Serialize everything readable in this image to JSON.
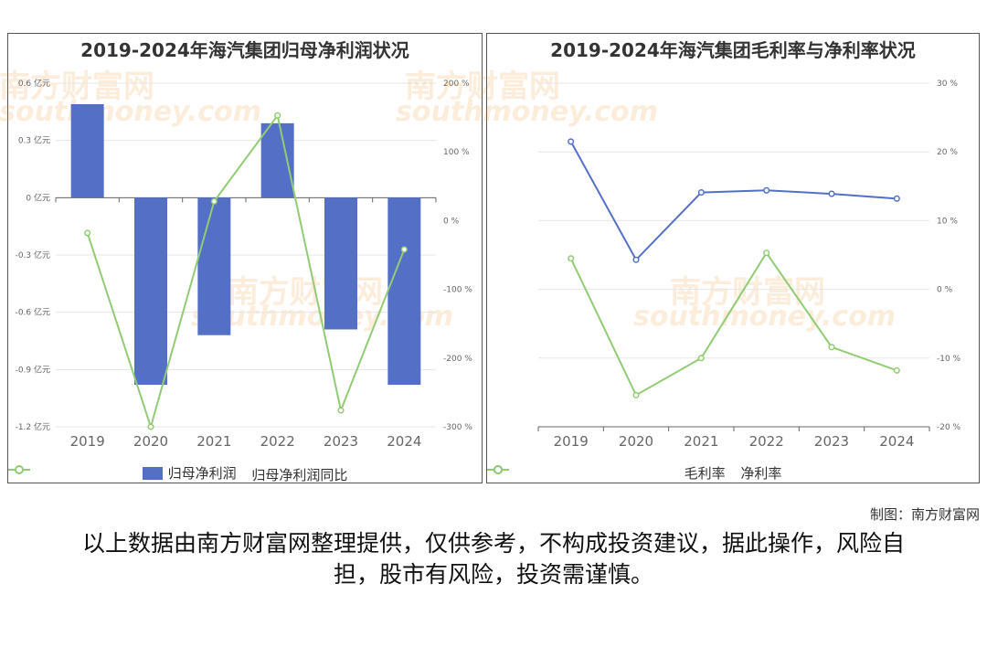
{
  "watermark": {
    "cn": "南方财富网",
    "en": "southmoney.com"
  },
  "credit": "制图：南方财富网",
  "disclaimer": "以上数据由南方财富网整理提供，仅供参考，不构成投资建议，据此操作，风险自担，股市有风险，投资需谨慎。",
  "chart_data": [
    {
      "type": "bar",
      "title": "2019-2024年海汽集团归母净利润状况",
      "categories": [
        "2019",
        "2020",
        "2021",
        "2022",
        "2023",
        "2024"
      ],
      "y_ticks": [
        "0.6 亿元",
        "0.3 亿元",
        "0 亿元",
        "-0.3 亿元",
        "-0.6 亿元",
        "-0.9 亿元",
        "-1.2 亿元"
      ],
      "y2_ticks": [
        "200 %",
        "100 %",
        "0 %",
        "-100 %",
        "-200 %",
        "-300 %"
      ],
      "ylim": [
        -1.2,
        0.6
      ],
      "y2lim": [
        -300,
        200
      ],
      "series": [
        {
          "name": "归母净利润",
          "type": "bar",
          "axis": "left",
          "color": "#5470c6",
          "values": [
            0.49,
            -0.98,
            -0.72,
            0.39,
            -0.69,
            -0.98
          ]
        },
        {
          "name": "归母净利润同比",
          "type": "line",
          "axis": "right",
          "color": "#91cc75",
          "values": [
            -18,
            -300,
            28,
            153,
            -276,
            -42
          ]
        }
      ],
      "legend": "bottom",
      "grid": true
    },
    {
      "type": "line",
      "title": "2019-2024年海汽集团毛利率与净利率状况",
      "categories": [
        "2019",
        "2020",
        "2021",
        "2022",
        "2023",
        "2024"
      ],
      "y_ticks": [
        "30 %",
        "20 %",
        "10 %",
        "0 %",
        "-10 %",
        "-20 %"
      ],
      "ylim": [
        -20,
        30
      ],
      "series": [
        {
          "name": "毛利率",
          "color": "#5470c6",
          "values": [
            21.5,
            4.3,
            14.1,
            14.4,
            13.9,
            13.2
          ]
        },
        {
          "name": "净利率",
          "color": "#91cc75",
          "values": [
            4.5,
            -15.4,
            -10.0,
            5.3,
            -8.4,
            -11.8
          ]
        }
      ],
      "legend": "bottom",
      "grid": true
    }
  ]
}
